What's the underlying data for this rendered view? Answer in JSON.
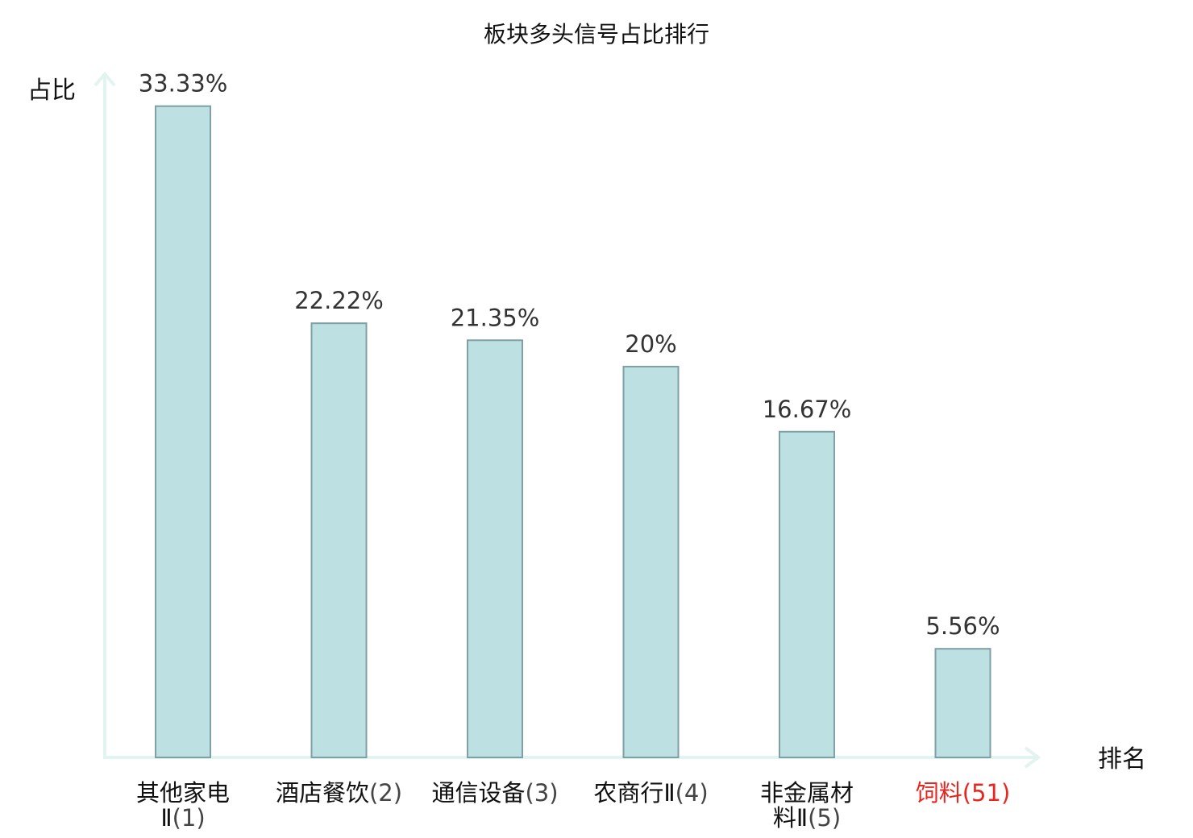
{
  "chart_data": {
    "type": "bar",
    "title": "板块多头信号占比排行",
    "xlabel": "排名",
    "ylabel": "占比",
    "ylim": [
      0,
      35
    ],
    "grid": false,
    "legend": "none",
    "categories": [
      {
        "name": "其他家电Ⅱ",
        "rank": "(1)",
        "highlight": false
      },
      {
        "name": "酒店餐饮",
        "rank": "(2)",
        "highlight": false
      },
      {
        "name": "通信设备",
        "rank": "(3)",
        "highlight": false
      },
      {
        "name": "农商行Ⅱ",
        "rank": "(4)",
        "highlight": false
      },
      {
        "name": "非金属材料Ⅱ",
        "rank": "(5)",
        "highlight": false
      },
      {
        "name": "饲料",
        "rank": "(51)",
        "highlight": true
      }
    ],
    "values": [
      33.33,
      22.22,
      21.35,
      20,
      16.67,
      5.56
    ],
    "value_labels": [
      "33.33%",
      "22.22%",
      "21.35%",
      "20%",
      "16.67%",
      "5.56%"
    ],
    "colors": {
      "bar_fill": "#bde0e3",
      "bar_stroke": "#7fa1a5",
      "axis": "#e2f4f0",
      "value_label": "#333333",
      "category_name": "#111111",
      "category_rank": "#444444",
      "highlight": "#e8261f"
    }
  }
}
